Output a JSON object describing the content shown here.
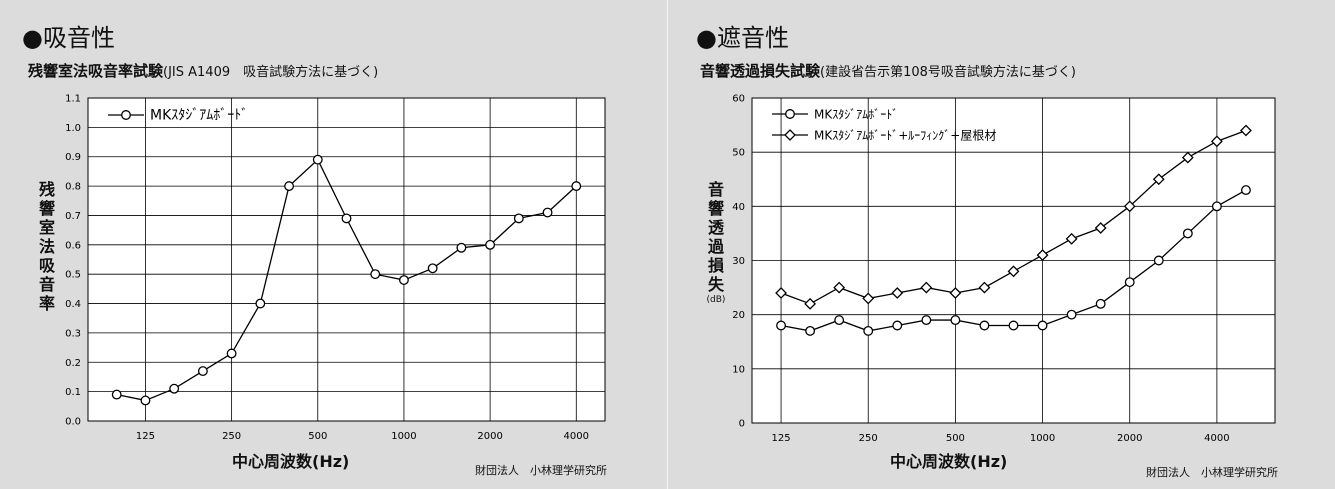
{
  "left": {
    "heading": "●吸音性",
    "subtitle_bold": "残響室法吸音率試験",
    "subtitle_small": "(JIS A1409　吸音試験方法に基づく)",
    "ylabel": "残響室法吸音率",
    "xlabel": "中心周波数(Hz)",
    "credit": "財団法人　小林理学研究所"
  },
  "right": {
    "heading": "●遮音性",
    "subtitle_bold": "音響透過損失試験",
    "subtitle_small": "(建設省告示第108号吸音試験方法に基づく)",
    "ylabel": "音響透過損失",
    "yunit": "(dB)",
    "xlabel": "中心周波数(Hz)",
    "credit": "財団法人　小林理学研究所"
  },
  "chart_data": [
    {
      "type": "line",
      "title": "残響室法吸音率試験",
      "xlabel": "中心周波数(Hz)",
      "ylabel": "残響室法吸音率",
      "categories": [
        "100",
        "125",
        "160",
        "200",
        "250",
        "315",
        "400",
        "500",
        "630",
        "800",
        "1000",
        "1250",
        "1600",
        "2000",
        "2500",
        "3150",
        "4000"
      ],
      "x_tick_labels": [
        "125",
        "250",
        "500",
        "1000",
        "2000",
        "4000"
      ],
      "ylim": [
        0,
        1.1
      ],
      "y_ticks": [
        "0.0",
        "0.1",
        "0.2",
        "0.3",
        "0.4",
        "0.5",
        "0.6",
        "0.7",
        "0.8",
        "0.9",
        "1.0",
        "1.1"
      ],
      "grid": true,
      "legend": "top-left",
      "series": [
        {
          "name": "MKｽﾀｼﾞｱﾑﾎﾞｰﾄﾞ",
          "marker": "circle",
          "values": [
            0.09,
            0.07,
            0.11,
            0.17,
            0.23,
            0.4,
            0.8,
            0.89,
            0.69,
            0.5,
            0.48,
            0.52,
            0.59,
            0.6,
            0.69,
            0.71,
            0.8
          ]
        }
      ]
    },
    {
      "type": "line",
      "title": "音響透過損失試験",
      "xlabel": "中心周波数(Hz)",
      "ylabel": "音響透過損失",
      "categories": [
        "125",
        "160",
        "200",
        "250",
        "315",
        "400",
        "500",
        "630",
        "800",
        "1000",
        "1250",
        "1600",
        "2000",
        "2500",
        "3150",
        "4000",
        "5000"
      ],
      "x_tick_labels": [
        "125",
        "250",
        "500",
        "1000",
        "2000",
        "4000"
      ],
      "ylim": [
        0,
        60
      ],
      "y_ticks": [
        "0",
        "10",
        "20",
        "30",
        "40",
        "50",
        "60"
      ],
      "grid": true,
      "legend": "top-left",
      "series": [
        {
          "name": "MKｽﾀｼﾞｱﾑﾎﾞｰﾄﾞ",
          "marker": "circle",
          "values": [
            18,
            17,
            19,
            17,
            18,
            19,
            19,
            18,
            18,
            18,
            20,
            22,
            26,
            30,
            35,
            40,
            43
          ]
        },
        {
          "name": "MKｽﾀｼﾞｱﾑﾎﾞｰﾄﾞ+ﾙｰﾌｨﾝｸﾞ+屋根材",
          "marker": "diamond",
          "values": [
            24,
            22,
            25,
            23,
            24,
            25,
            24,
            25,
            28,
            31,
            34,
            36,
            40,
            45,
            49,
            52,
            54
          ]
        }
      ]
    }
  ]
}
